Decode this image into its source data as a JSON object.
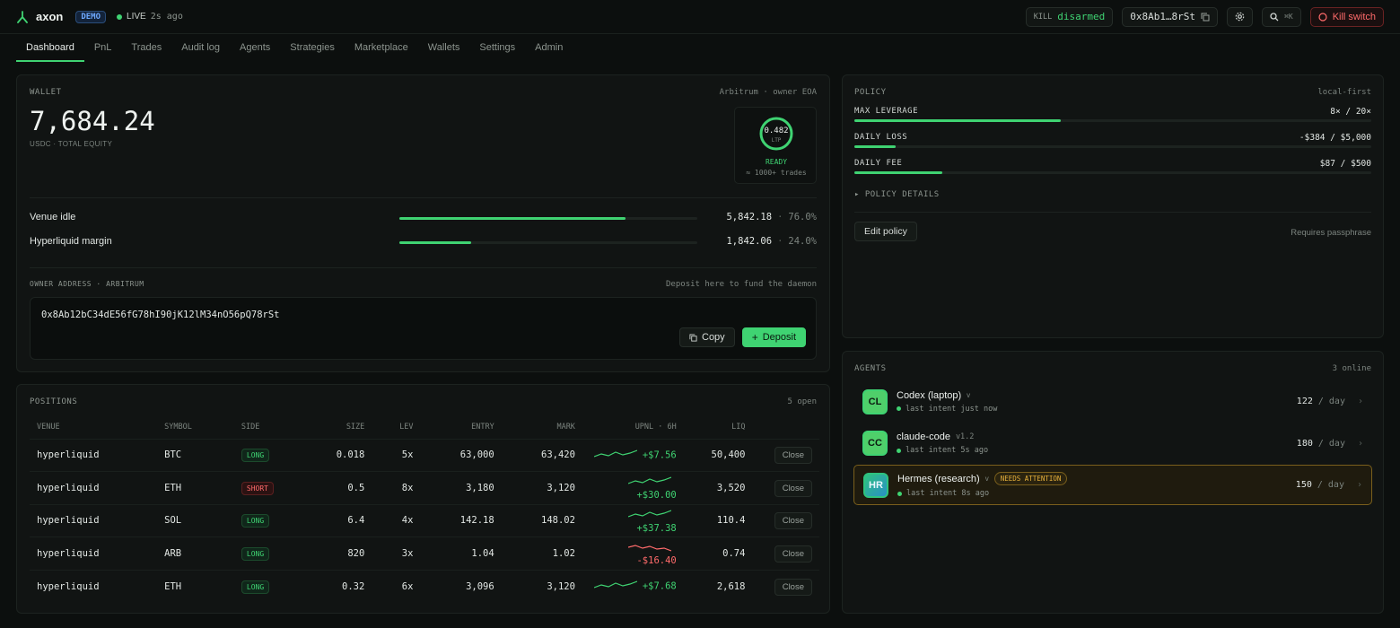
{
  "header": {
    "brand": "axon",
    "demo_badge": "DEMO",
    "live_label": "LIVE",
    "live_age": "2s ago",
    "kill_label": "KILL",
    "kill_state": "disarmed",
    "address_short": "0x8Ab1…8rSt",
    "search_shortcut": "⌘K",
    "kill_switch": "Kill switch"
  },
  "tabs": [
    "Dashboard",
    "PnL",
    "Trades",
    "Audit log",
    "Agents",
    "Strategies",
    "Marketplace",
    "Wallets",
    "Settings",
    "Admin"
  ],
  "wallet": {
    "title": "WALLET",
    "network": "Arbitrum · owner EOA",
    "equity": "7,684.24",
    "equity_label": "USDC · TOTAL EQUITY",
    "gauge_value": "0.482",
    "gauge_unit": "LTP",
    "gauge_status": "READY",
    "gauge_note": "≈ 1000+ trades",
    "allocations": [
      {
        "name": "Venue idle",
        "amount": "5,842.18",
        "pct": "76.0%",
        "fill": 0.76
      },
      {
        "name": "Hyperliquid margin",
        "amount": "1,842.06",
        "pct": "24.0%",
        "fill": 0.24
      }
    ],
    "owner_label": "OWNER ADDRESS · ARBITRUM",
    "owner_hint": "Deposit here to fund the daemon",
    "owner_address": "0x8Ab12bC34dE56fG78hI90jK12lM34nO56pQ78rSt",
    "copy_label": "Copy",
    "deposit_label": "Deposit"
  },
  "positions": {
    "title": "POSITIONS",
    "count": "5 open",
    "columns": [
      "VENUE",
      "SYMBOL",
      "SIDE",
      "SIZE",
      "LEV",
      "ENTRY",
      "MARK",
      "UPNL · 6H",
      "LIQ",
      ""
    ],
    "rows": [
      {
        "venue": "hyperliquid",
        "symbol": "BTC",
        "side": "LONG",
        "size": "0.018",
        "lev": "5x",
        "entry": "63,000",
        "mark": "63,420",
        "upnl": "+$7.56",
        "liq": "50,400",
        "close": "Close"
      },
      {
        "venue": "hyperliquid",
        "symbol": "ETH",
        "side": "SHORT",
        "size": "0.5",
        "lev": "8x",
        "entry": "3,180",
        "mark": "3,120",
        "upnl": "+$30.00",
        "liq": "3,520",
        "close": "Close"
      },
      {
        "venue": "hyperliquid",
        "symbol": "SOL",
        "side": "LONG",
        "size": "6.4",
        "lev": "4x",
        "entry": "142.18",
        "mark": "148.02",
        "upnl": "+$37.38",
        "liq": "110.4",
        "close": "Close"
      },
      {
        "venue": "hyperliquid",
        "symbol": "ARB",
        "side": "LONG",
        "size": "820",
        "lev": "3x",
        "entry": "1.04",
        "mark": "1.02",
        "upnl": "-$16.40",
        "liq": "0.74",
        "close": "Close"
      },
      {
        "venue": "hyperliquid",
        "symbol": "ETH",
        "side": "LONG",
        "size": "0.32",
        "lev": "6x",
        "entry": "3,096",
        "mark": "3,120",
        "upnl": "+$7.68",
        "liq": "2,618",
        "close": "Close"
      }
    ]
  },
  "policy": {
    "title": "POLICY",
    "mode": "local-first",
    "limits": [
      {
        "name": "MAX LEVERAGE",
        "value": "8× / 20×",
        "fill": 0.4
      },
      {
        "name": "DAILY LOSS",
        "value": "-$384 / $5,000",
        "fill": 0.08
      },
      {
        "name": "DAILY FEE",
        "value": "$87 / $500",
        "fill": 0.17
      }
    ],
    "details_label": "▸ POLICY DETAILS",
    "edit_label": "Edit policy",
    "edit_hint": "Requires passphrase"
  },
  "agents": {
    "title": "AGENTS",
    "online": "3 online",
    "per_day": "/ day",
    "items": [
      {
        "initials": "CL",
        "name": "Codex (laptop)",
        "version": "",
        "flag": "",
        "status": "last intent just now",
        "rate": "122"
      },
      {
        "initials": "CC",
        "name": "claude-code",
        "version": "v1.2",
        "flag": "",
        "status": "last intent 5s ago",
        "rate": "180"
      },
      {
        "initials": "HR",
        "name": "Hermes (research)",
        "version": "",
        "flag": "NEEDS ATTENTION",
        "status": "last intent 8s ago",
        "rate": "150"
      }
    ]
  },
  "colors": {
    "accent": "#3fd372",
    "danger": "#ff6b6b",
    "warning": "#e7b13c",
    "background": "#0c0f0e"
  }
}
